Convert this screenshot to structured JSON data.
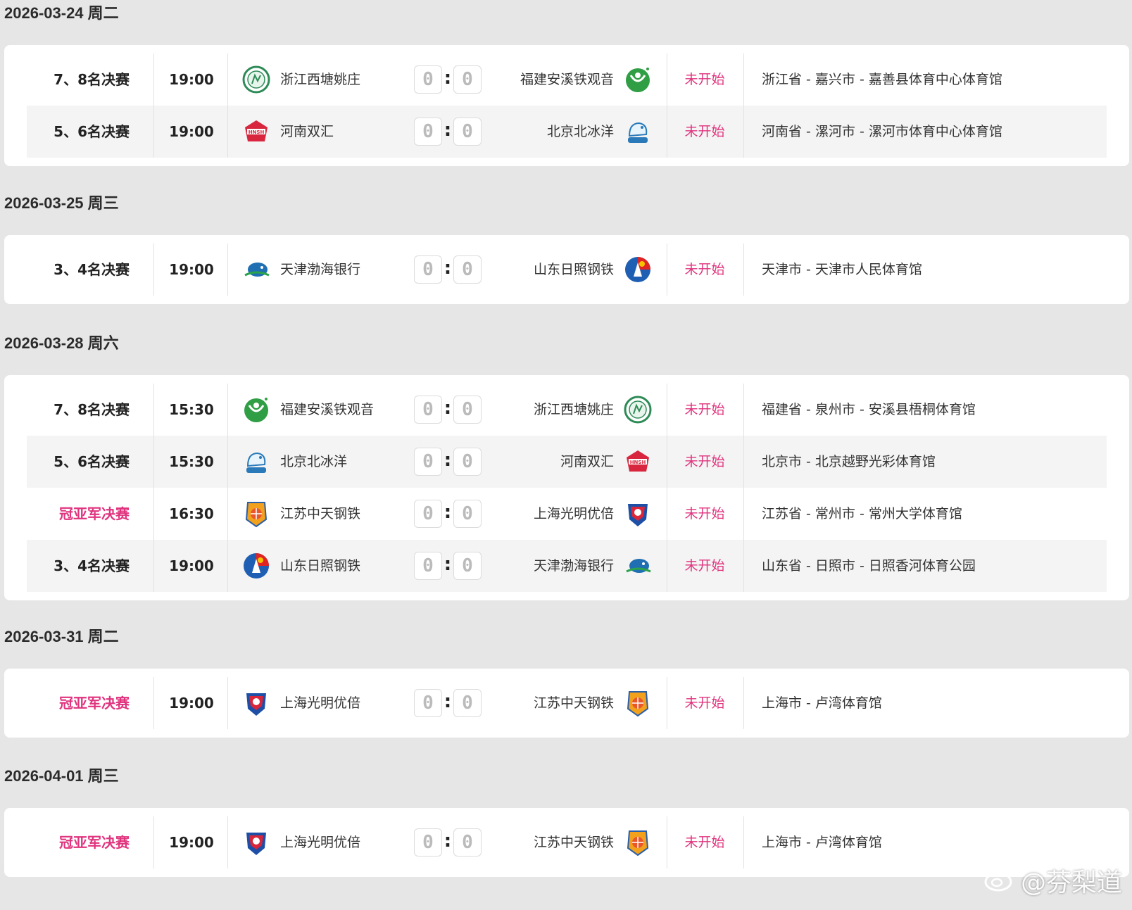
{
  "days": [
    {
      "date": "2026-03-24 周二",
      "matches": [
        {
          "round": "7、8名决赛",
          "final": false,
          "time": "19:00",
          "home": "浙江西塘姚庄",
          "home_logo": "zhejiang-logo",
          "score_home": "0",
          "score_away": "0",
          "away": "福建安溪铁观音",
          "away_logo": "fujian-logo",
          "status": "未开始",
          "venue": "浙江省 - 嘉兴市 - 嘉善县体育中心体育馆"
        },
        {
          "round": "5、6名决赛",
          "final": false,
          "time": "19:00",
          "home": "河南双汇",
          "home_logo": "henan-logo",
          "score_home": "0",
          "score_away": "0",
          "away": "北京北冰洋",
          "away_logo": "beijing-logo",
          "status": "未开始",
          "venue": "河南省 - 漯河市 - 漯河市体育中心体育馆"
        }
      ]
    },
    {
      "date": "2026-03-25 周三",
      "matches": [
        {
          "round": "3、4名决赛",
          "final": false,
          "time": "19:00",
          "home": "天津渤海银行",
          "home_logo": "tianjin-logo",
          "score_home": "0",
          "score_away": "0",
          "away": "山东日照钢铁",
          "away_logo": "shandong-logo",
          "status": "未开始",
          "venue": "天津市 - 天津市人民体育馆"
        }
      ]
    },
    {
      "date": "2026-03-28 周六",
      "matches": [
        {
          "round": "7、8名决赛",
          "final": false,
          "time": "15:30",
          "home": "福建安溪铁观音",
          "home_logo": "fujian-logo",
          "score_home": "0",
          "score_away": "0",
          "away": "浙江西塘姚庄",
          "away_logo": "zhejiang-logo",
          "status": "未开始",
          "venue": "福建省 - 泉州市 - 安溪县梧桐体育馆"
        },
        {
          "round": "5、6名决赛",
          "final": false,
          "time": "15:30",
          "home": "北京北冰洋",
          "home_logo": "beijing-logo",
          "score_home": "0",
          "score_away": "0",
          "away": "河南双汇",
          "away_logo": "henan-logo",
          "status": "未开始",
          "venue": "北京市 - 北京越野光彩体育馆"
        },
        {
          "round": "冠亚军决赛",
          "final": true,
          "time": "16:30",
          "home": "江苏中天钢铁",
          "home_logo": "jiangsu-logo",
          "score_home": "0",
          "score_away": "0",
          "away": "上海光明优倍",
          "away_logo": "shanghai-logo",
          "status": "未开始",
          "venue": "江苏省 - 常州市 - 常州大学体育馆"
        },
        {
          "round": "3、4名决赛",
          "final": false,
          "time": "19:00",
          "home": "山东日照钢铁",
          "home_logo": "shandong-logo",
          "score_home": "0",
          "score_away": "0",
          "away": "天津渤海银行",
          "away_logo": "tianjin-logo",
          "status": "未开始",
          "venue": "山东省 - 日照市 - 日照香河体育公园"
        }
      ]
    },
    {
      "date": "2026-03-31 周二",
      "matches": [
        {
          "round": "冠亚军决赛",
          "final": true,
          "time": "19:00",
          "home": "上海光明优倍",
          "home_logo": "shanghai-logo",
          "score_home": "0",
          "score_away": "0",
          "away": "江苏中天钢铁",
          "away_logo": "jiangsu-logo",
          "status": "未开始",
          "venue": "上海市 - 卢湾体育馆"
        }
      ]
    },
    {
      "date": "2026-04-01 周三",
      "matches": [
        {
          "round": "冠亚军决赛",
          "final": true,
          "time": "19:00",
          "home": "上海光明优倍",
          "home_logo": "shanghai-logo",
          "score_home": "0",
          "score_away": "0",
          "away": "江苏中天钢铁",
          "away_logo": "jiangsu-logo",
          "status": "未开始",
          "venue": "上海市 - 卢湾体育馆"
        }
      ]
    }
  ],
  "colors": {
    "accent": "#e0337e",
    "background": "#e6e6e6",
    "card": "#ffffff",
    "row_alt": "#f4f4f4"
  },
  "watermark": "@芬梨道",
  "watermark_icon": "weibo-icon"
}
